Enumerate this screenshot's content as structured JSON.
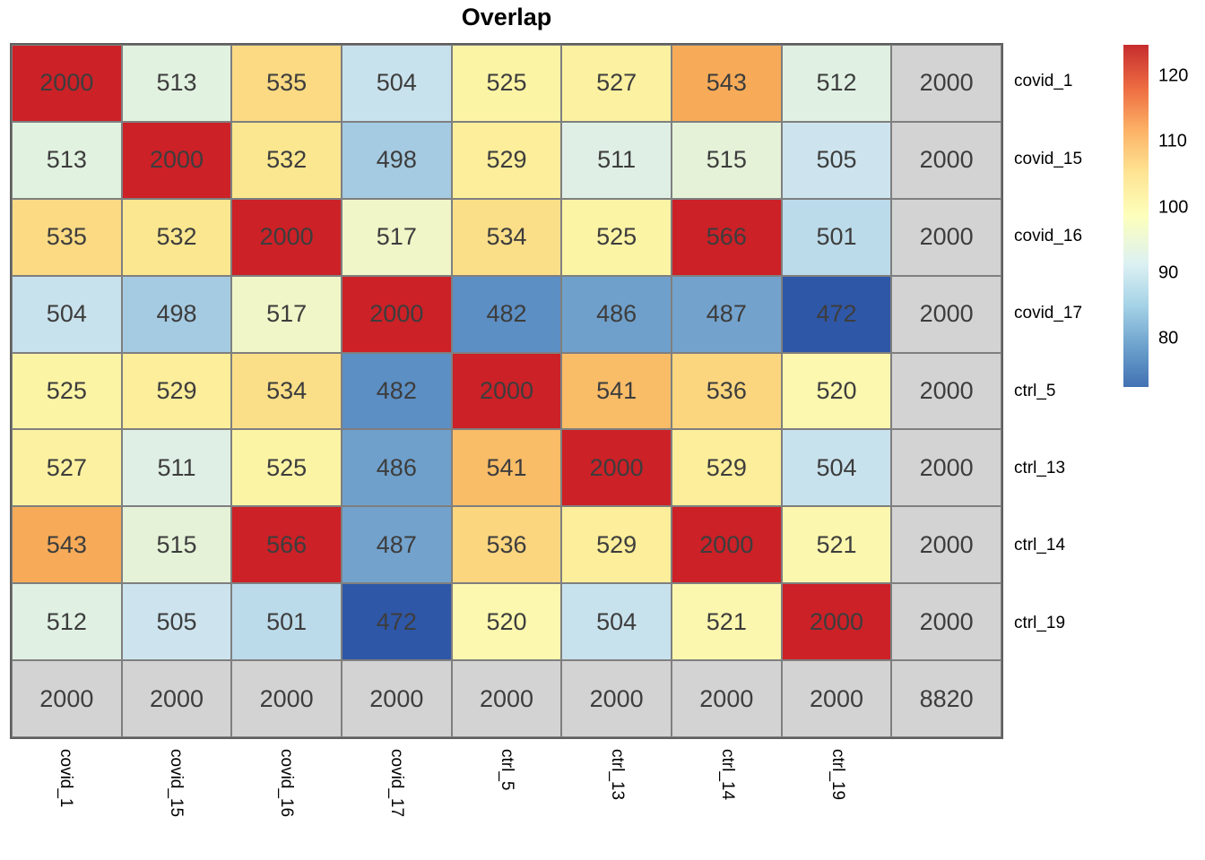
{
  "title": "Overlap",
  "chart_data": {
    "type": "heatmap",
    "title": "Overlap",
    "row_labels": [
      "covid_1",
      "covid_15",
      "covid_16",
      "covid_17",
      "ctrl_5",
      "ctrl_13",
      "ctrl_14",
      "ctrl_19",
      ""
    ],
    "col_labels": [
      "covid_1",
      "covid_15",
      "covid_16",
      "covid_17",
      "ctrl_5",
      "ctrl_13",
      "ctrl_14",
      "ctrl_19",
      ""
    ],
    "values": [
      [
        2000,
        513,
        535,
        504,
        525,
        527,
        543,
        512,
        2000
      ],
      [
        513,
        2000,
        532,
        498,
        529,
        511,
        515,
        505,
        2000
      ],
      [
        535,
        532,
        2000,
        517,
        534,
        525,
        566,
        501,
        2000
      ],
      [
        504,
        498,
        517,
        2000,
        482,
        486,
        487,
        472,
        2000
      ],
      [
        525,
        529,
        534,
        482,
        2000,
        541,
        536,
        520,
        2000
      ],
      [
        527,
        511,
        525,
        486,
        541,
        2000,
        529,
        504,
        2000
      ],
      [
        543,
        515,
        566,
        487,
        536,
        529,
        2000,
        521,
        2000
      ],
      [
        512,
        505,
        501,
        472,
        520,
        504,
        521,
        2000,
        2000
      ],
      [
        2000,
        2000,
        2000,
        2000,
        2000,
        2000,
        2000,
        2000,
        8820
      ]
    ],
    "cell_colors": [
      [
        "#cb2127",
        "#e2f2e0",
        "#fbda83",
        "#c8e2ed",
        "#fcf4a5",
        "#fbf1a0",
        "#f7ab58",
        "#e0f1e3",
        "#d3d3d3"
      ],
      [
        "#e2f2e0",
        "#cb2127",
        "#fbe78f",
        "#a5cbe2",
        "#fcee9a",
        "#dfefe5",
        "#e5f2d8",
        "#cde4ee",
        "#d3d3d3"
      ],
      [
        "#fbda83",
        "#fbe78f",
        "#cb2127",
        "#f0f6c8",
        "#fbdf88",
        "#fcf4a5",
        "#cb2127",
        "#bcdbea",
        "#d3d3d3"
      ],
      [
        "#c8e2ed",
        "#a5cbe2",
        "#f0f6c8",
        "#cb2127",
        "#5c8fc4",
        "#6fa0cb",
        "#73a3cd",
        "#2f57a7",
        "#d3d3d3"
      ],
      [
        "#fcf4a5",
        "#fcee9a",
        "#fbdf88",
        "#5c8fc4",
        "#cb2127",
        "#f9bc67",
        "#fbd67f",
        "#fcf8af",
        "#d3d3d3"
      ],
      [
        "#fbf1a0",
        "#dfefe5",
        "#fcf4a5",
        "#6fa0cb",
        "#f9bc67",
        "#cb2127",
        "#fcee9a",
        "#c8e2ed",
        "#d3d3d3"
      ],
      [
        "#f7ab58",
        "#e5f2d8",
        "#cb2127",
        "#73a3cd",
        "#fbd67f",
        "#fcee9a",
        "#cb2127",
        "#fcf7ae",
        "#d3d3d3"
      ],
      [
        "#e0f1e3",
        "#cde4ee",
        "#bcdbea",
        "#2f57a7",
        "#fcf8af",
        "#c8e2ed",
        "#fcf7ae",
        "#cb2127",
        "#d3d3d3"
      ],
      [
        "#d3d3d3",
        "#d3d3d3",
        "#d3d3d3",
        "#d3d3d3",
        "#d3d3d3",
        "#d3d3d3",
        "#d3d3d3",
        "#d3d3d3",
        "#d3d3d3"
      ]
    ],
    "colorbar": {
      "ticks": [
        "120",
        "110",
        "100",
        "90",
        "80"
      ],
      "gradient_stops_bottom_to_top": [
        {
          "pos": 0.0,
          "color": "#4272b3"
        },
        {
          "pos": 0.12,
          "color": "#6da2cd"
        },
        {
          "pos": 0.24,
          "color": "#a6d3e7"
        },
        {
          "pos": 0.36,
          "color": "#dcf1f3"
        },
        {
          "pos": 0.5,
          "color": "#fdffbb"
        },
        {
          "pos": 0.63,
          "color": "#fee392"
        },
        {
          "pos": 0.75,
          "color": "#fcb266"
        },
        {
          "pos": 0.87,
          "color": "#ee6e42"
        },
        {
          "pos": 1.0,
          "color": "#c62d2e"
        }
      ]
    },
    "colors": {
      "cell_text": "#3d3d3d",
      "grid_line": "#7f7f7f",
      "outer_border": "#5f5f5f",
      "margin_cell": "#d3d3d3",
      "max_red": "#cb2127",
      "min_blue": "#2f57a7"
    }
  }
}
